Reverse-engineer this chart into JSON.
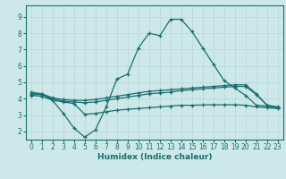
{
  "background_color": "#cce8e8",
  "grid_color": "#b8d8d8",
  "line_color": "#1a6e6e",
  "xlabel": "Humidex (Indice chaleur)",
  "xlim": [
    -0.5,
    23.5
  ],
  "ylim": [
    1.5,
    9.7
  ],
  "yticks": [
    2,
    3,
    4,
    5,
    6,
    7,
    8,
    9
  ],
  "xticks": [
    0,
    1,
    2,
    3,
    4,
    5,
    6,
    7,
    8,
    9,
    10,
    11,
    12,
    13,
    14,
    15,
    16,
    17,
    18,
    19,
    20,
    21,
    22,
    23
  ],
  "curve1_x": [
    0,
    1,
    2,
    3,
    4,
    5,
    6,
    7,
    8,
    9,
    10,
    11,
    12,
    13,
    14,
    15,
    16,
    17,
    18,
    19,
    20,
    21,
    22,
    23
  ],
  "curve1_y": [
    4.4,
    4.3,
    3.9,
    3.1,
    2.2,
    1.65,
    2.1,
    3.5,
    5.2,
    5.5,
    7.1,
    8.0,
    7.85,
    8.85,
    8.85,
    8.1,
    7.1,
    6.1,
    5.1,
    4.65,
    4.2,
    3.6,
    3.55,
    3.45
  ],
  "curve2_x": [
    0,
    1,
    2,
    3,
    4,
    5,
    6,
    7,
    8,
    9,
    10,
    11,
    12,
    13,
    14,
    15,
    16,
    17,
    18,
    19,
    20,
    21,
    22,
    23
  ],
  "curve2_y": [
    4.3,
    4.3,
    4.05,
    3.95,
    3.9,
    3.9,
    3.95,
    4.05,
    4.15,
    4.25,
    4.35,
    4.45,
    4.5,
    4.55,
    4.6,
    4.65,
    4.7,
    4.75,
    4.8,
    4.85,
    4.85,
    4.3,
    3.6,
    3.5
  ],
  "curve3_x": [
    0,
    1,
    2,
    3,
    4,
    5,
    6,
    7,
    8,
    9,
    10,
    11,
    12,
    13,
    14,
    15,
    16,
    17,
    18,
    19,
    20,
    21,
    22,
    23
  ],
  "curve3_y": [
    4.25,
    4.25,
    4.0,
    3.85,
    3.8,
    3.75,
    3.8,
    3.9,
    4.0,
    4.1,
    4.2,
    4.3,
    4.35,
    4.4,
    4.5,
    4.55,
    4.6,
    4.65,
    4.7,
    4.75,
    4.75,
    4.25,
    3.6,
    3.45
  ],
  "curve4_x": [
    0,
    1,
    2,
    3,
    4,
    5,
    6,
    7,
    8,
    9,
    10,
    11,
    12,
    13,
    14,
    15,
    16,
    17,
    18,
    19,
    20,
    21,
    22,
    23
  ],
  "curve4_y": [
    4.2,
    4.15,
    3.9,
    3.8,
    3.7,
    3.05,
    3.1,
    3.2,
    3.3,
    3.35,
    3.4,
    3.45,
    3.5,
    3.55,
    3.6,
    3.6,
    3.62,
    3.63,
    3.63,
    3.63,
    3.6,
    3.5,
    3.45,
    3.4
  ],
  "tick_fontsize": 5.5,
  "xlabel_fontsize": 6.5
}
